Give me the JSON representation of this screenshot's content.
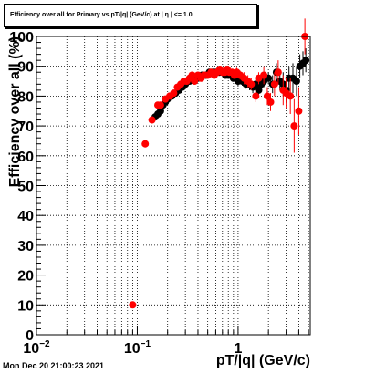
{
  "title": "Efficiency over all for Primary vs pT/|q| (GeV/c) at | η | <= 1.0",
  "timestamp": "Mon Dec 20 21:00:23 2021",
  "colors": {
    "black_series": "#000000",
    "red_series": "#ff0000",
    "grid": "#000000"
  },
  "chart_data": {
    "type": "scatter",
    "xlabel": "pT/|q| (GeV/c)",
    "ylabel": "Efficiency over all (%)",
    "xscale": "log",
    "xlim": [
      0.01,
      5.2
    ],
    "ylim": [
      0,
      100
    ],
    "grid": true,
    "x_tick_labels": [
      {
        "value": 0.01,
        "base": "10",
        "exp": "−2"
      },
      {
        "value": 0.1,
        "base": "10",
        "exp": "−1"
      },
      {
        "value": 1,
        "base": "1",
        "exp": ""
      }
    ],
    "y_tick_labels": [
      "0",
      "10",
      "20",
      "30",
      "40",
      "50",
      "60",
      "70",
      "80",
      "90",
      "100"
    ],
    "series": [
      {
        "color": "#000000",
        "points": [
          [
            0.15,
            73,
            1
          ],
          [
            0.16,
            74,
            1
          ],
          [
            0.17,
            75,
            1
          ],
          [
            0.18,
            77,
            1
          ],
          [
            0.19,
            78,
            1
          ],
          [
            0.2,
            79,
            1
          ],
          [
            0.22,
            80,
            1
          ],
          [
            0.24,
            81,
            1
          ],
          [
            0.26,
            82,
            1
          ],
          [
            0.28,
            83,
            1
          ],
          [
            0.3,
            84,
            1
          ],
          [
            0.33,
            85,
            1
          ],
          [
            0.36,
            86,
            1
          ],
          [
            0.4,
            86,
            1
          ],
          [
            0.44,
            87,
            1
          ],
          [
            0.48,
            87,
            1
          ],
          [
            0.52,
            88,
            1
          ],
          [
            0.56,
            88,
            1
          ],
          [
            0.6,
            88,
            1
          ],
          [
            0.65,
            88,
            1
          ],
          [
            0.7,
            88,
            1
          ],
          [
            0.75,
            87,
            1
          ],
          [
            0.8,
            87,
            1
          ],
          [
            0.85,
            87,
            1
          ],
          [
            0.9,
            86,
            1
          ],
          [
            0.95,
            86,
            1
          ],
          [
            1.0,
            85,
            1.5
          ],
          [
            1.1,
            85,
            1.5
          ],
          [
            1.2,
            84,
            1.5
          ],
          [
            1.3,
            84,
            2
          ],
          [
            1.4,
            83,
            2
          ],
          [
            1.5,
            84,
            2
          ],
          [
            1.6,
            82,
            2
          ],
          [
            1.7,
            84,
            2
          ],
          [
            1.8,
            85,
            2
          ],
          [
            2.0,
            86,
            2
          ],
          [
            2.2,
            84,
            3
          ],
          [
            2.4,
            88,
            3
          ],
          [
            2.6,
            85,
            3
          ],
          [
            2.8,
            84,
            4
          ],
          [
            3.0,
            82,
            4
          ],
          [
            3.2,
            86,
            4
          ],
          [
            3.5,
            86,
            5
          ],
          [
            3.8,
            85,
            5
          ],
          [
            4.1,
            90,
            4
          ],
          [
            4.4,
            91,
            4
          ],
          [
            4.7,
            92,
            4
          ]
        ]
      },
      {
        "color": "#ff0000",
        "points": [
          [
            0.09,
            10,
            1
          ],
          [
            0.12,
            64,
            1
          ],
          [
            0.14,
            72,
            1
          ],
          [
            0.16,
            77,
            1
          ],
          [
            0.17,
            77,
            1
          ],
          [
            0.19,
            79,
            1
          ],
          [
            0.21,
            80,
            1
          ],
          [
            0.23,
            81,
            1
          ],
          [
            0.25,
            83,
            1
          ],
          [
            0.27,
            84,
            1
          ],
          [
            0.29,
            85,
            1
          ],
          [
            0.31,
            85,
            1
          ],
          [
            0.33,
            86,
            1
          ],
          [
            0.35,
            87,
            1
          ],
          [
            0.37,
            85,
            1
          ],
          [
            0.4,
            87,
            1
          ],
          [
            0.43,
            86,
            1
          ],
          [
            0.46,
            87,
            1
          ],
          [
            0.5,
            87,
            1
          ],
          [
            0.54,
            88,
            1
          ],
          [
            0.58,
            87,
            1
          ],
          [
            0.62,
            88,
            1
          ],
          [
            0.66,
            89,
            1
          ],
          [
            0.7,
            88,
            1
          ],
          [
            0.74,
            88,
            1
          ],
          [
            0.78,
            89,
            1
          ],
          [
            0.82,
            88,
            1
          ],
          [
            0.87,
            88,
            1
          ],
          [
            0.92,
            87,
            1
          ],
          [
            0.97,
            88,
            1.5
          ],
          [
            1.05,
            87,
            1.5
          ],
          [
            1.15,
            86,
            2
          ],
          [
            1.25,
            85,
            2
          ],
          [
            1.35,
            84,
            2
          ],
          [
            1.5,
            80,
            2
          ],
          [
            1.6,
            86,
            2
          ],
          [
            1.8,
            87,
            3
          ],
          [
            1.95,
            80,
            3
          ],
          [
            2.1,
            78,
            3
          ],
          [
            2.3,
            84,
            4
          ],
          [
            2.5,
            88,
            4
          ],
          [
            2.8,
            82,
            5
          ],
          [
            3.0,
            81,
            5
          ],
          [
            3.3,
            80,
            6
          ],
          [
            3.6,
            70,
            9
          ],
          [
            4.0,
            75,
            8
          ],
          [
            4.6,
            100,
            6
          ]
        ]
      }
    ]
  }
}
